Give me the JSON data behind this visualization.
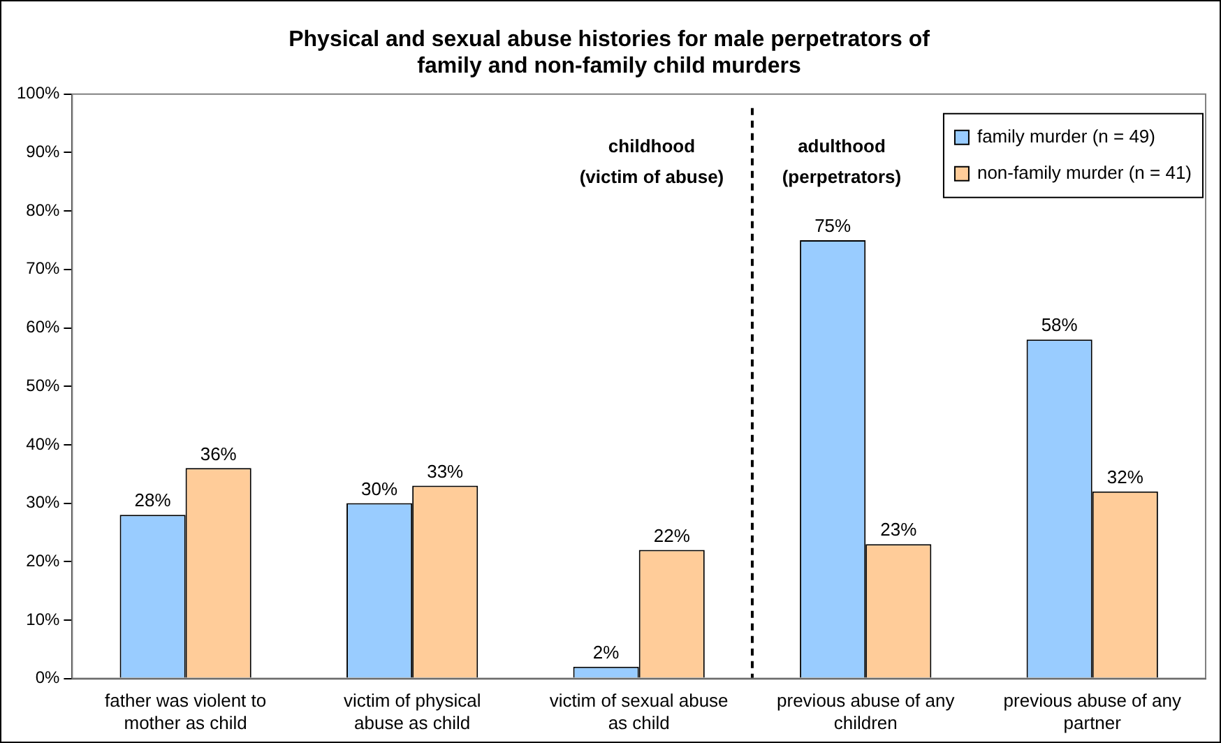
{
  "chart_data": {
    "type": "bar",
    "title": "Physical and sexual abuse histories for male perpetrators of\nfamily and non-family child murders",
    "categories": [
      "father was violent to mother as child",
      "victim of physical abuse as child",
      "victim of sexual abuse as child",
      "previous abuse of any children",
      "previous abuse of any partner"
    ],
    "series": [
      {
        "name": "family murder (n = 49)",
        "color": "#99ccff",
        "values": [
          28,
          30,
          2,
          75,
          58
        ],
        "value_labels": [
          "28%",
          "30%",
          "2%",
          "75%",
          "58%"
        ]
      },
      {
        "name": "non-family murder (n = 41)",
        "color": "#ffcc99",
        "values": [
          36,
          33,
          22,
          23,
          32
        ],
        "value_labels": [
          "36%",
          "33%",
          "22%",
          "23%",
          "32%"
        ]
      }
    ],
    "ylim": [
      0,
      100
    ],
    "yticks": [
      {
        "value": 0,
        "label": "0%"
      },
      {
        "value": 10,
        "label": "10%"
      },
      {
        "value": 20,
        "label": "20%"
      },
      {
        "value": 30,
        "label": "30%"
      },
      {
        "value": 40,
        "label": "40%"
      },
      {
        "value": 50,
        "label": "50%"
      },
      {
        "value": 60,
        "label": "60%"
      },
      {
        "value": 70,
        "label": "70%"
      },
      {
        "value": 80,
        "label": "80%"
      },
      {
        "value": 90,
        "label": "90%"
      },
      {
        "value": 100,
        "label": "100%"
      }
    ],
    "annotations": [
      "childhood\n(victim of abuse)",
      "adulthood\n(perpetrators)"
    ],
    "grid": false,
    "legend": "top right"
  }
}
